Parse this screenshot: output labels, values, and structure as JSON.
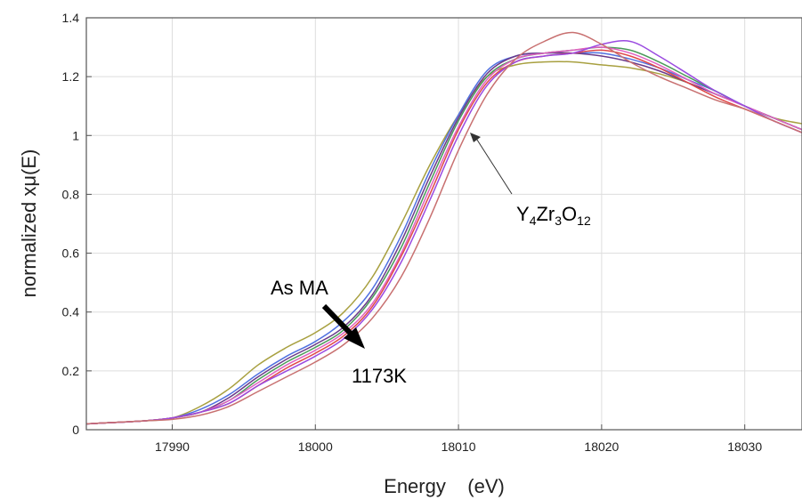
{
  "chart_data": {
    "type": "line",
    "xlabel": "Energy    (eV)",
    "ylabel": "normalized xμ(E)",
    "xlim": [
      17984,
      18034
    ],
    "ylim": [
      0,
      1.4
    ],
    "x_ticks": [
      17990,
      18000,
      18010,
      18020,
      18030
    ],
    "x_tick_labels": [
      "17990",
      "18000",
      "18010",
      "18020",
      "18030"
    ],
    "y_ticks": [
      0,
      0.2,
      0.4,
      0.6,
      0.8,
      1,
      1.2,
      1.4
    ],
    "y_tick_labels": [
      "0",
      "0.2",
      "0.4",
      "0.6",
      "0.8",
      "1",
      "1.2",
      "1.4"
    ],
    "grid": true,
    "legend": "none",
    "x": [
      17984,
      17988,
      17990,
      17992,
      17994,
      17996,
      17998,
      18000,
      18002,
      18004,
      18006,
      18008,
      18010,
      18012,
      18014,
      18016,
      18018,
      18020,
      18022,
      18024,
      18026,
      18028,
      18030,
      18032,
      18034
    ],
    "series": [
      {
        "color": "#a8a040",
        "values": [
          0.02,
          0.03,
          0.04,
          0.08,
          0.14,
          0.22,
          0.28,
          0.33,
          0.4,
          0.52,
          0.7,
          0.9,
          1.07,
          1.2,
          1.24,
          1.25,
          1.25,
          1.24,
          1.23,
          1.21,
          1.18,
          1.14,
          1.1,
          1.06,
          1.04
        ]
      },
      {
        "color": "#5070e0",
        "values": [
          0.02,
          0.03,
          0.04,
          0.07,
          0.12,
          0.19,
          0.25,
          0.3,
          0.37,
          0.48,
          0.66,
          0.88,
          1.07,
          1.22,
          1.27,
          1.28,
          1.28,
          1.28,
          1.26,
          1.23,
          1.19,
          1.15,
          1.1,
          1.06,
          1.02
        ]
      },
      {
        "color": "#6a3a8a",
        "values": [
          0.02,
          0.03,
          0.04,
          0.06,
          0.11,
          0.18,
          0.24,
          0.29,
          0.35,
          0.46,
          0.64,
          0.86,
          1.06,
          1.21,
          1.27,
          1.28,
          1.28,
          1.27,
          1.25,
          1.22,
          1.18,
          1.14,
          1.1,
          1.06,
          1.02
        ]
      },
      {
        "color": "#4a9a5a",
        "values": [
          0.02,
          0.03,
          0.04,
          0.06,
          0.1,
          0.17,
          0.23,
          0.28,
          0.34,
          0.45,
          0.62,
          0.84,
          1.05,
          1.2,
          1.26,
          1.28,
          1.29,
          1.3,
          1.29,
          1.25,
          1.2,
          1.15,
          1.1,
          1.06,
          1.02
        ]
      },
      {
        "color": "#e060c0",
        "values": [
          0.02,
          0.03,
          0.04,
          0.06,
          0.1,
          0.16,
          0.22,
          0.27,
          0.33,
          0.43,
          0.6,
          0.82,
          1.03,
          1.19,
          1.26,
          1.28,
          1.29,
          1.3,
          1.28,
          1.24,
          1.19,
          1.14,
          1.1,
          1.06,
          1.02
        ]
      },
      {
        "color": "#e04848",
        "values": [
          0.02,
          0.03,
          0.04,
          0.06,
          0.09,
          0.15,
          0.21,
          0.26,
          0.32,
          0.42,
          0.59,
          0.8,
          1.02,
          1.18,
          1.25,
          1.27,
          1.28,
          1.29,
          1.27,
          1.23,
          1.18,
          1.13,
          1.09,
          1.05,
          1.01
        ]
      },
      {
        "color": "#9a4ae0",
        "values": [
          0.02,
          0.03,
          0.04,
          0.06,
          0.09,
          0.15,
          0.2,
          0.25,
          0.31,
          0.41,
          0.57,
          0.78,
          1.0,
          1.17,
          1.25,
          1.27,
          1.28,
          1.31,
          1.32,
          1.27,
          1.21,
          1.15,
          1.1,
          1.05,
          1.01
        ]
      },
      {
        "color": "#c87070",
        "values": [
          0.02,
          0.03,
          0.035,
          0.05,
          0.08,
          0.13,
          0.18,
          0.23,
          0.29,
          0.38,
          0.52,
          0.72,
          0.95,
          1.14,
          1.26,
          1.32,
          1.35,
          1.31,
          1.25,
          1.2,
          1.16,
          1.12,
          1.09,
          1.05,
          1.01
        ]
      }
    ],
    "annotations": {
      "as_ma": "As MA",
      "k1173": "1173K",
      "compound_main": "Y",
      "compound_sub1": "4",
      "compound_mid": "Zr",
      "compound_sub2": "3",
      "compound_end": "O",
      "compound_sub3": "12"
    }
  }
}
